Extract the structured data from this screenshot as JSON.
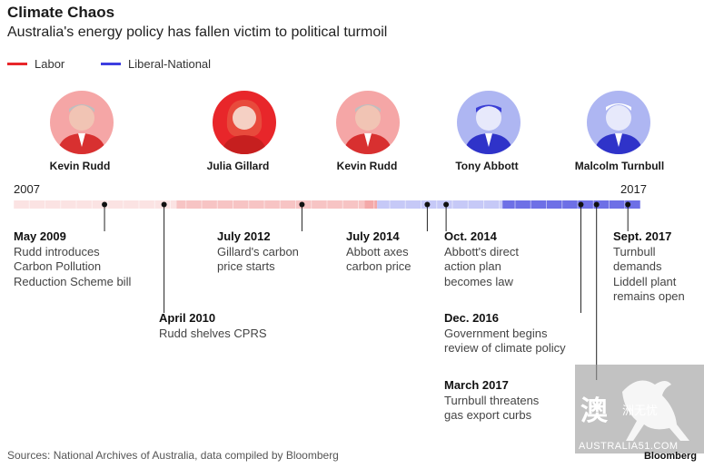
{
  "header": {
    "title": "Climate Chaos",
    "subtitle": "Australia's energy policy has fallen victim to political turmoil"
  },
  "legend": {
    "labor_label": "Labor",
    "labor_color": "#e8262a",
    "liberal_label": "Liberal-National",
    "liberal_color": "#3d3ee0"
  },
  "leaders": [
    {
      "name": "Kevin Rudd",
      "party": "labor",
      "icon": "man-portrait-icon"
    },
    {
      "name": "Julia Gillard",
      "party": "labor",
      "icon": "woman-portrait-icon"
    },
    {
      "name": "Kevin Rudd",
      "party": "labor",
      "icon": "man-portrait-icon"
    },
    {
      "name": "Tony Abbott",
      "party": "liberal",
      "icon": "man-portrait-icon"
    },
    {
      "name": "Malcolm Turnbull",
      "party": "liberal",
      "icon": "man-portrait-icon"
    }
  ],
  "timeline": {
    "start_label": "2007",
    "end_label": "2017",
    "start_year": 2007.9,
    "end_year": 2017.9,
    "eras": [
      {
        "party": "labor",
        "from": 2007.9,
        "to": 2010.5
      },
      {
        "party": "labor",
        "from": 2010.5,
        "to": 2013.5
      },
      {
        "party": "labor",
        "from": 2013.5,
        "to": 2013.7
      },
      {
        "party": "liberal",
        "from": 2013.7,
        "to": 2015.7
      },
      {
        "party": "liberal",
        "from": 2015.7,
        "to": 2017.9
      }
    ]
  },
  "events": [
    {
      "date": "May 2009",
      "desc": "Rudd introduces\nCarbon Pollution\nReduction Scheme bill",
      "year": 2009.35
    },
    {
      "date": "April 2010",
      "desc": "Rudd shelves CPRS",
      "year": 2010.3
    },
    {
      "date": "July 2012",
      "desc": "Gillard's carbon\nprice starts",
      "year": 2012.5
    },
    {
      "date": "July 2014",
      "desc": "Abbott axes\ncarbon price",
      "year": 2014.5
    },
    {
      "date": "Oct. 2014",
      "desc": "Abbott's direct\naction plan\nbecomes law",
      "year": 2014.8
    },
    {
      "date": "Dec. 2016",
      "desc": "Government begins\nreview of climate policy",
      "year": 2016.95
    },
    {
      "date": "March 2017",
      "desc": "Turnbull threatens\ngas export curbs",
      "year": 2017.2
    },
    {
      "date": "Sept. 2017",
      "desc": "Turnbull\ndemands\nLiddell plant\nremains open",
      "year": 2017.7
    }
  ],
  "footer": {
    "source": "Sources: National Archives of Australia, data compiled by Bloomberg",
    "credit": "Bloomberg"
  },
  "watermark": {
    "char": "澳",
    "cn": "洲无忧",
    "url": "AUSTRALIA51.COM"
  }
}
